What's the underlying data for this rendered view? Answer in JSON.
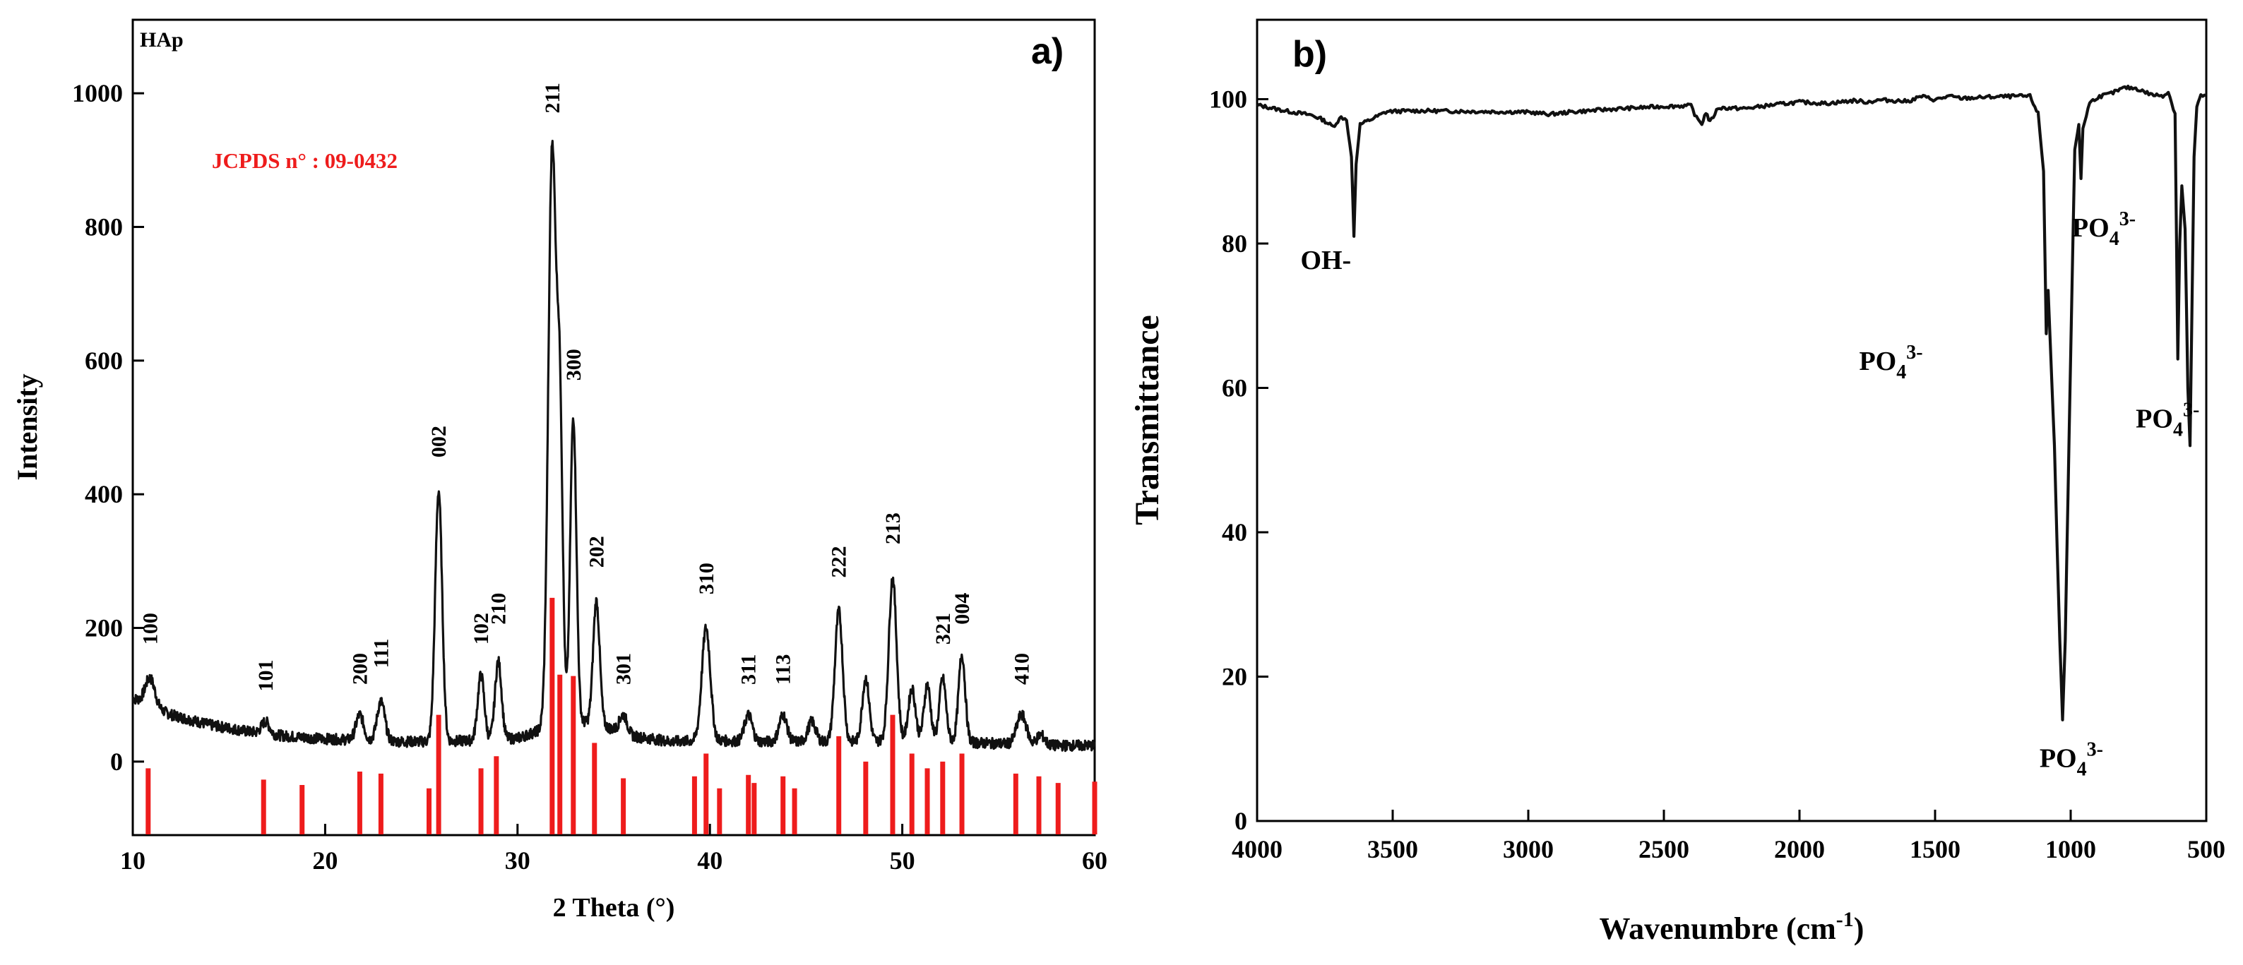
{
  "chart_data": [
    {
      "type": "line",
      "panel": "a)",
      "sample_label": "HAp",
      "reference_label": "JCPDS n° : 09-0432",
      "xlabel": "2 Theta (°)",
      "ylabel": "Intensity",
      "xlim": [
        10,
        60
      ],
      "ylim": [
        -110,
        1110
      ],
      "x_ticks": [
        10,
        20,
        30,
        40,
        50,
        60
      ],
      "y_ticks": [
        0,
        200,
        400,
        600,
        800,
        1000
      ],
      "colors": {
        "pattern": "#111111",
        "reference": "#ee1c1c",
        "reference_text": "#ee1c1c"
      },
      "series": [
        {
          "name": "HAp pattern",
          "baseline": [
            [
              10,
              95
            ],
            [
              12,
              70
            ],
            [
              14,
              55
            ],
            [
              16,
              45
            ],
            [
              18,
              38
            ],
            [
              20,
              34
            ],
            [
              22,
              32
            ],
            [
              24,
              30
            ],
            [
              26,
              30
            ],
            [
              28,
              32
            ],
            [
              30,
              35
            ],
            [
              31,
              45
            ],
            [
              32,
              60
            ],
            [
              34,
              58
            ],
            [
              36,
              38
            ],
            [
              38,
              30
            ],
            [
              40,
              32
            ],
            [
              42,
              30
            ],
            [
              44,
              30
            ],
            [
              46,
              30
            ],
            [
              48,
              30
            ],
            [
              50,
              32
            ],
            [
              52,
              32
            ],
            [
              54,
              28
            ],
            [
              56,
              26
            ],
            [
              58,
              24
            ],
            [
              60,
              24
            ]
          ],
          "peaks": [
            {
              "x": 10.9,
              "y": 125,
              "w": 0.25
            },
            {
              "x": 16.9,
              "y": 60,
              "w": 0.2
            },
            {
              "x": 21.8,
              "y": 70,
              "w": 0.2
            },
            {
              "x": 22.9,
              "y": 90,
              "w": 0.2
            },
            {
              "x": 25.9,
              "y": 405,
              "w": 0.18
            },
            {
              "x": 28.1,
              "y": 130,
              "w": 0.17
            },
            {
              "x": 29.0,
              "y": 150,
              "w": 0.17
            },
            {
              "x": 31.8,
              "y": 915,
              "w": 0.2
            },
            {
              "x": 32.2,
              "y": 500,
              "w": 0.15
            },
            {
              "x": 32.9,
              "y": 515,
              "w": 0.16
            },
            {
              "x": 34.1,
              "y": 240,
              "w": 0.17
            },
            {
              "x": 35.5,
              "y": 70,
              "w": 0.2
            },
            {
              "x": 39.8,
              "y": 200,
              "w": 0.22
            },
            {
              "x": 42.0,
              "y": 70,
              "w": 0.2
            },
            {
              "x": 43.8,
              "y": 70,
              "w": 0.2
            },
            {
              "x": 45.3,
              "y": 60,
              "w": 0.2
            },
            {
              "x": 46.7,
              "y": 225,
              "w": 0.2
            },
            {
              "x": 48.1,
              "y": 125,
              "w": 0.18
            },
            {
              "x": 49.5,
              "y": 275,
              "w": 0.2
            },
            {
              "x": 50.5,
              "y": 110,
              "w": 0.18
            },
            {
              "x": 51.3,
              "y": 115,
              "w": 0.17
            },
            {
              "x": 52.1,
              "y": 125,
              "w": 0.17
            },
            {
              "x": 53.1,
              "y": 160,
              "w": 0.17
            },
            {
              "x": 56.2,
              "y": 70,
              "w": 0.25
            },
            {
              "x": 57.2,
              "y": 40,
              "w": 0.2
            }
          ]
        }
      ],
      "reference_lines": [
        {
          "x": 10.8,
          "top": -10
        },
        {
          "x": 16.8,
          "top": -27
        },
        {
          "x": 18.8,
          "top": -35
        },
        {
          "x": 21.8,
          "top": -15
        },
        {
          "x": 22.9,
          "top": -18
        },
        {
          "x": 25.4,
          "top": -40
        },
        {
          "x": 25.9,
          "top": 70
        },
        {
          "x": 28.1,
          "top": -10
        },
        {
          "x": 28.9,
          "top": 8
        },
        {
          "x": 31.8,
          "top": 245
        },
        {
          "x": 32.2,
          "top": 130
        },
        {
          "x": 32.9,
          "top": 128
        },
        {
          "x": 34.0,
          "top": 28
        },
        {
          "x": 35.5,
          "top": -25
        },
        {
          "x": 39.2,
          "top": -22
        },
        {
          "x": 39.8,
          "top": 12
        },
        {
          "x": 40.5,
          "top": -40
        },
        {
          "x": 42.0,
          "top": -20
        },
        {
          "x": 42.3,
          "top": -32
        },
        {
          "x": 43.8,
          "top": -22
        },
        {
          "x": 44.4,
          "top": -40
        },
        {
          "x": 46.7,
          "top": 38
        },
        {
          "x": 48.1,
          "top": 0
        },
        {
          "x": 49.5,
          "top": 70
        },
        {
          "x": 50.5,
          "top": 12
        },
        {
          "x": 51.3,
          "top": -10
        },
        {
          "x": 52.1,
          "top": 0
        },
        {
          "x": 53.1,
          "top": 12
        },
        {
          "x": 55.9,
          "top": -18
        },
        {
          "x": 57.1,
          "top": -22
        },
        {
          "x": 58.1,
          "top": -32
        },
        {
          "x": 60.0,
          "top": -30
        }
      ],
      "annotations": [
        {
          "text": "100",
          "x": 10.9,
          "y": 175
        },
        {
          "text": "101",
          "x": 16.9,
          "y": 105
        },
        {
          "text": "200",
          "x": 21.8,
          "y": 115
        },
        {
          "text": "111",
          "x": 22.9,
          "y": 140
        },
        {
          "text": "002",
          "x": 25.9,
          "y": 455
        },
        {
          "text": "102",
          "x": 28.1,
          "y": 175
        },
        {
          "text": "210",
          "x": 29.0,
          "y": 205
        },
        {
          "text": "211",
          "x": 31.8,
          "y": 970
        },
        {
          "text": "300",
          "x": 32.9,
          "y": 570
        },
        {
          "text": "202",
          "x": 34.1,
          "y": 290
        },
        {
          "text": "301",
          "x": 35.5,
          "y": 115
        },
        {
          "text": "310",
          "x": 39.8,
          "y": 250
        },
        {
          "text": "311",
          "x": 42.0,
          "y": 115
        },
        {
          "text": "113",
          "x": 43.8,
          "y": 115
        },
        {
          "text": "222",
          "x": 46.7,
          "y": 275
        },
        {
          "text": "213",
          "x": 49.5,
          "y": 325
        },
        {
          "text": "321",
          "x": 52.1,
          "y": 175
        },
        {
          "text": "004",
          "x": 53.1,
          "y": 205
        },
        {
          "text": "410",
          "x": 56.2,
          "y": 115
        }
      ]
    },
    {
      "type": "line",
      "panel": "b)",
      "xlabel_main": "Wavenumbre (cm",
      "xlabel_sup": "-1",
      "xlabel_end": ")",
      "ylabel": "Transmittance",
      "xlim": [
        4000,
        500
      ],
      "ylim": [
        0,
        111
      ],
      "x_ticks": [
        4000,
        3500,
        3000,
        2500,
        2000,
        1500,
        1000,
        500
      ],
      "y_ticks": [
        0,
        20,
        40,
        60,
        80,
        100
      ],
      "colors": {
        "spectrum": "#111111"
      },
      "series": [
        {
          "name": "FTIR spectrum",
          "points": [
            [
              4000,
              99.2
            ],
            [
              3900,
              98.4
            ],
            [
              3800,
              97.8
            ],
            [
              3760,
              97.2
            ],
            [
              3720,
              96.2
            ],
            [
              3690,
              97.5
            ],
            [
              3670,
              97.2
            ],
            [
              3652,
              92
            ],
            [
              3643,
              81
            ],
            [
              3635,
              91
            ],
            [
              3620,
              96.5
            ],
            [
              3580,
              97.2
            ],
            [
              3520,
              98.3
            ],
            [
              3400,
              98.4
            ],
            [
              3200,
              98.3
            ],
            [
              3000,
              98.2
            ],
            [
              2920,
              97.9
            ],
            [
              2850,
              98.2
            ],
            [
              2700,
              98.6
            ],
            [
              2500,
              99.0
            ],
            [
              2400,
              99.1
            ],
            [
              2380,
              97.4
            ],
            [
              2360,
              96.6
            ],
            [
              2345,
              98.2
            ],
            [
              2330,
              96.8
            ],
            [
              2300,
              98.8
            ],
            [
              2200,
              98.7
            ],
            [
              2100,
              99.2
            ],
            [
              2000,
              99.6
            ],
            [
              1900,
              99.4
            ],
            [
              1800,
              99.8
            ],
            [
              1750,
              99.6
            ],
            [
              1700,
              99.9
            ],
            [
              1600,
              99.7
            ],
            [
              1550,
              100.4
            ],
            [
              1500,
              99.9
            ],
            [
              1450,
              100.4
            ],
            [
              1400,
              100.1
            ],
            [
              1300,
              100.3
            ],
            [
              1200,
              100.4
            ],
            [
              1150,
              100.4
            ],
            [
              1120,
              98
            ],
            [
              1100,
              90
            ],
            [
              1090,
              67.5
            ],
            [
              1083,
              73.5
            ],
            [
              1075,
              66
            ],
            [
              1060,
              52
            ],
            [
              1050,
              38
            ],
            [
              1040,
              25
            ],
            [
              1030,
              14
            ],
            [
              1020,
              25
            ],
            [
              1005,
              55
            ],
            [
              992,
              80
            ],
            [
              985,
              93
            ],
            [
              970,
              96.5
            ],
            [
              962,
              89
            ],
            [
              955,
              96
            ],
            [
              930,
              99.5
            ],
            [
              900,
              100.3
            ],
            [
              850,
              100.8
            ],
            [
              800,
              101.6
            ],
            [
              760,
              101.5
            ],
            [
              700,
              100.6
            ],
            [
              660,
              100.5
            ],
            [
              640,
              101.0
            ],
            [
              615,
              98
            ],
            [
              605,
              64
            ],
            [
              598,
              80
            ],
            [
              590,
              88
            ],
            [
              578,
              82
            ],
            [
              568,
              60
            ],
            [
              560,
              52
            ],
            [
              553,
              70
            ],
            [
              545,
              92
            ],
            [
              535,
              99
            ],
            [
              520,
              100.5
            ],
            [
              500,
              100.5
            ]
          ]
        }
      ],
      "annotations": [
        {
          "text": "OH-",
          "x": 3840,
          "y": 76.5,
          "sup": ""
        },
        {
          "text": "PO",
          "sub": "4",
          "sup": "3-",
          "x": 1780,
          "y": 62.5
        },
        {
          "text": "PO",
          "sub": "4",
          "sup": "3-",
          "x": 1115,
          "y": 7.5
        },
        {
          "text": "PO",
          "sub": "4",
          "sup": "3-",
          "x": 995,
          "y": 81
        },
        {
          "text": "PO",
          "sub": "4",
          "sup": "3-",
          "x": 760,
          "y": 54.5
        }
      ]
    }
  ]
}
